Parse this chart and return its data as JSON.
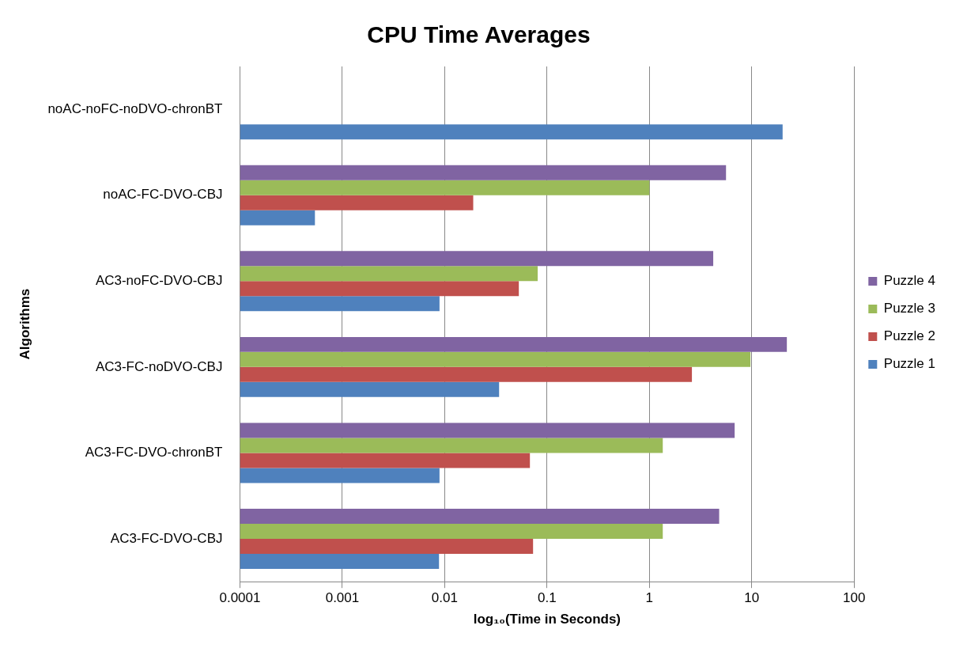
{
  "chart_data": {
    "type": "bar",
    "orientation": "horizontal",
    "title": "CPU Time Averages",
    "xlabel": "log₁₀(Time in Seconds)",
    "ylabel": "Algorithms",
    "categories": [
      "noAC-noFC-noDVO-chronBT",
      "noAC-FC-DVO-CBJ",
      "AC3-noFC-DVO-CBJ",
      "AC3-FC-noDVO-CBJ",
      "AC3-FC-DVO-chronBT",
      "AC3-FC-DVO-CBJ"
    ],
    "series": [
      {
        "name": "Puzzle 4",
        "color": "#8064a2",
        "values": [
          null,
          5.6,
          4.2,
          22,
          6.8,
          4.8
        ]
      },
      {
        "name": "Puzzle 3",
        "color": "#9bbb59",
        "values": [
          null,
          1,
          0.081,
          9.7,
          1.35,
          1.35
        ]
      },
      {
        "name": "Puzzle 2",
        "color": "#c0504d",
        "values": [
          null,
          0.019,
          0.053,
          2.6,
          0.068,
          0.073
        ]
      },
      {
        "name": "Puzzle 1",
        "color": "#4f81bd",
        "values": [
          20,
          0.00054,
          0.0089,
          0.034,
          0.0089,
          0.0088
        ]
      }
    ],
    "xlim": [
      0.0001,
      100
    ],
    "xticks": [
      0.0001,
      0.001,
      0.01,
      0.1,
      1,
      10,
      100
    ],
    "log": "x",
    "grid": "x",
    "legend": "right"
  }
}
